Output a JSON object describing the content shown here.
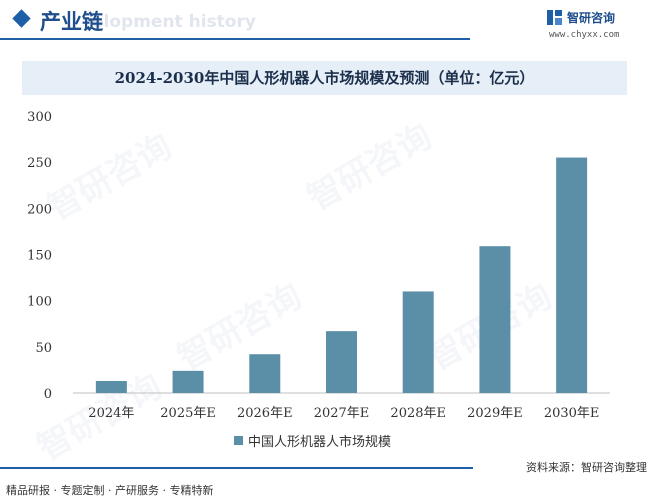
{
  "header": {
    "section_title": "产业链",
    "section_ghost": "elopment history"
  },
  "brand": {
    "name": "智研咨询",
    "url": "www.chyxx.com",
    "color": "#1f5fa8"
  },
  "watermark_text": "智研咨询",
  "chart_data": {
    "type": "bar",
    "title": "2024-2030年中国人形机器人市场规模及预测（单位：亿元）",
    "categories": [
      "2024年",
      "2025年E",
      "2026年E",
      "2027年E",
      "2028年E",
      "2029年E",
      "2030年E"
    ],
    "series": [
      {
        "name": "中国人形机器人市场规模",
        "values": [
          13,
          24,
          42,
          67,
          110,
          159,
          255
        ],
        "color": "#5b8fa8"
      }
    ],
    "ylim": [
      0,
      300
    ],
    "yticks": [
      "0",
      "50",
      "100",
      "150",
      "200",
      "250",
      "300"
    ],
    "grid": false,
    "legend_position": "bottom-center"
  },
  "footer": {
    "source": "资料来源：智研咨询整理",
    "tagline": "精品研报 · 专题定制 · 产研服务 · 专精特新"
  }
}
